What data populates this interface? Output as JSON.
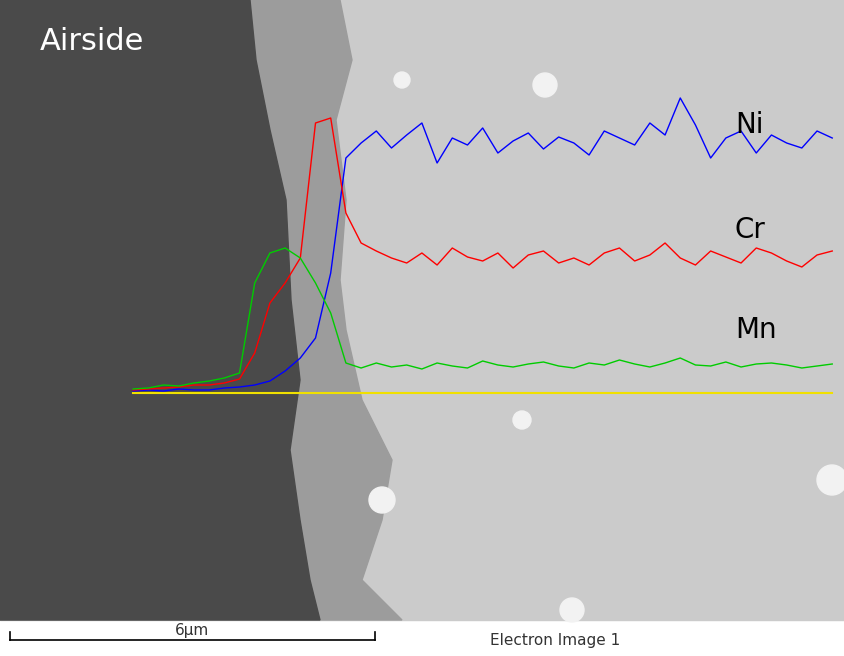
{
  "chart_data": {
    "type": "line",
    "annotations": [
      "Airside",
      "Electron Image 1"
    ],
    "scale_bar": {
      "length": 6,
      "label": "6µm"
    },
    "tick_labels": false,
    "xlim": [
      -2.19,
      11.71
    ],
    "ylim": [
      -263,
      393
    ],
    "x": [
      0,
      0.25,
      0.5,
      0.75,
      1,
      1.25,
      1.5,
      1.75,
      2,
      2.25,
      2.5,
      2.75,
      3,
      3.25,
      3.5,
      3.75,
      4,
      4.25,
      4.5,
      4.75,
      5,
      5.25,
      5.5,
      5.75,
      6,
      6.25,
      6.5,
      6.75,
      7,
      7.25,
      7.5,
      7.75,
      8,
      8.25,
      8.5,
      8.75,
      9,
      9.25,
      9.5,
      9.75,
      10,
      10.25,
      10.5,
      10.75,
      11,
      11.25,
      11.5
    ],
    "series": [
      {
        "name": "Ni",
        "color": "#0000ff",
        "values": [
          2,
          3,
          2,
          4,
          3,
          3,
          5,
          6,
          8,
          12,
          22,
          35,
          55,
          120,
          235,
          250,
          262,
          245,
          258,
          270,
          230,
          255,
          248,
          265,
          240,
          252,
          260,
          244,
          256,
          250,
          238,
          262,
          255,
          248,
          270,
          258,
          295,
          268,
          235,
          255,
          262,
          240,
          258,
          250,
          245,
          262,
          255
        ]
      },
      {
        "name": "Cr",
        "color": "#ff0000",
        "values": [
          3,
          4,
          5,
          6,
          8,
          8,
          10,
          14,
          40,
          90,
          110,
          135,
          270,
          275,
          180,
          150,
          142,
          135,
          130,
          140,
          128,
          145,
          136,
          132,
          140,
          125,
          138,
          142,
          130,
          135,
          128,
          140,
          145,
          132,
          138,
          150,
          135,
          128,
          142,
          136,
          130,
          145,
          140,
          132,
          126,
          138,
          142
        ]
      },
      {
        "name": "Mn",
        "color": "#00cc00",
        "values": [
          4,
          5,
          8,
          7,
          10,
          12,
          15,
          20,
          110,
          140,
          145,
          135,
          110,
          80,
          30,
          25,
          30,
          26,
          28,
          24,
          30,
          27,
          25,
          32,
          28,
          26,
          29,
          31,
          27,
          25,
          30,
          28,
          33,
          29,
          26,
          30,
          35,
          28,
          27,
          31,
          26,
          29,
          30,
          28,
          25,
          27,
          29
        ]
      }
    ]
  }
}
